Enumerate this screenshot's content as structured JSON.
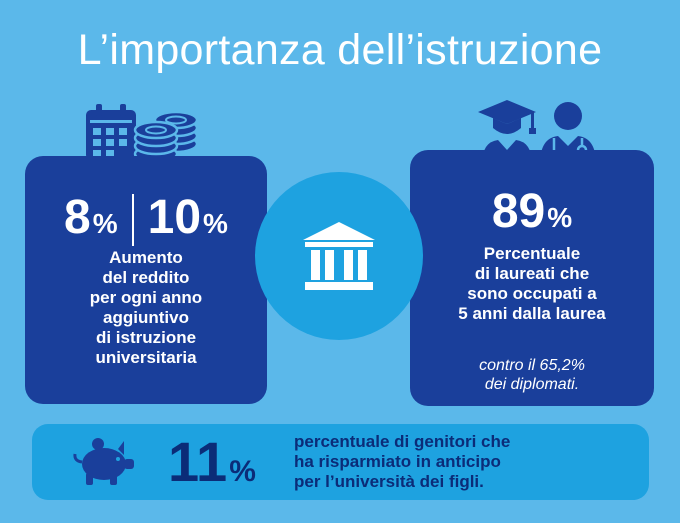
{
  "title": "L’importanza dell’istruzione",
  "left_panel": {
    "value_a": "8",
    "value_b": "10",
    "percent": "%",
    "lines": [
      "Aumento",
      "del reddito",
      "per ogni anno",
      "aggiuntivo",
      "di istruzione",
      "universitaria"
    ]
  },
  "right_panel": {
    "value": "89",
    "percent": "%",
    "lines": [
      "Percentuale",
      "di laureati che",
      "sono occupati a",
      "5 anni dalla laurea"
    ],
    "note_lines": [
      "contro il 65,2%",
      "dei diplomati."
    ]
  },
  "bottom_panel": {
    "value": "11",
    "percent": "%",
    "lines": [
      "percentuale di genitori che",
      "ha risparmiato in anticipo",
      "per l’università dei figli."
    ]
  },
  "icons": [
    "calendar-icon",
    "coins-icon",
    "graduate-icon",
    "doctor-icon",
    "university-icon",
    "piggy-bank-icon"
  ],
  "colors": {
    "background": "#5bb8ea",
    "panel": "#1a3f9b",
    "accent": "#1ea2e0",
    "text_light": "#ffffff",
    "text_dark": "#0b2c78"
  }
}
